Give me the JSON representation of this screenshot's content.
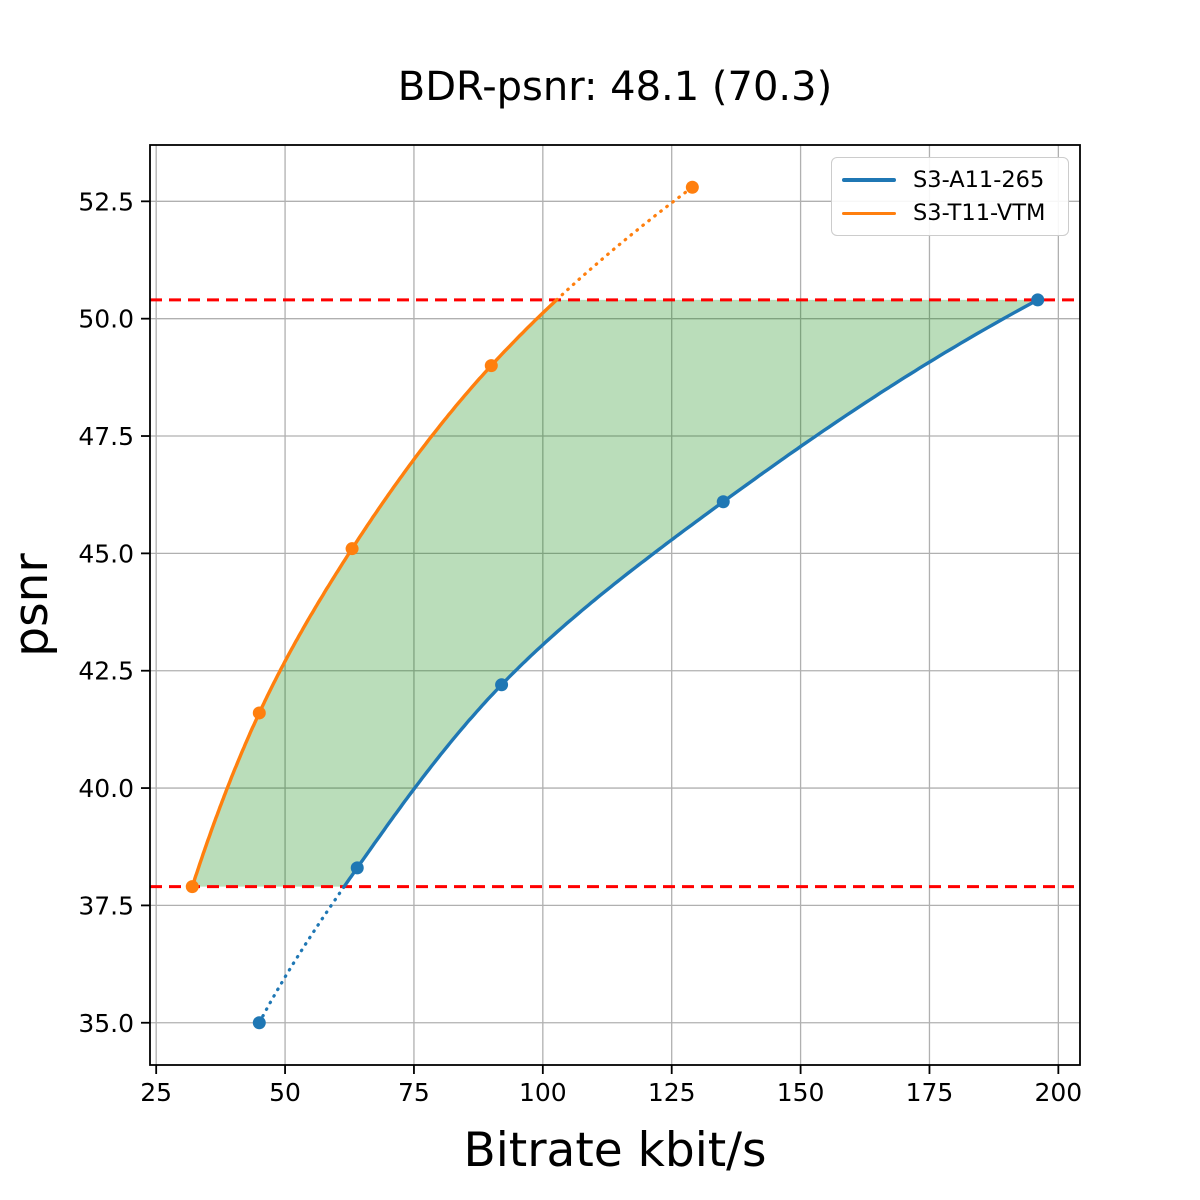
{
  "chart_data": {
    "type": "line",
    "title": "BDR-psnr: 48.1 (70.3)",
    "xlabel": "Bitrate kbit/s",
    "ylabel": "psnr",
    "xlim": [
      23.8,
      204.2
    ],
    "ylim": [
      34.1,
      53.7
    ],
    "x_ticks": [
      25,
      50,
      75,
      100,
      125,
      150,
      175,
      200
    ],
    "y_ticks": [
      35.0,
      37.5,
      40.0,
      42.5,
      45.0,
      47.5,
      50.0,
      52.5
    ],
    "grid": true,
    "grid_color": "#b0b0b0",
    "legend_position": "upper right",
    "series": [
      {
        "name": "S3-A11-265",
        "color": "#1f77b4",
        "x": [
          45,
          64,
          92,
          135,
          196
        ],
        "y": [
          35.0,
          38.3,
          42.2,
          46.1,
          50.4
        ]
      },
      {
        "name": "S3-T11-VTM",
        "color": "#ff7f0e",
        "x": [
          32,
          45,
          63,
          90,
          129
        ],
        "y": [
          37.9,
          41.6,
          45.1,
          49.0,
          52.8
        ]
      }
    ],
    "overlap_lines": {
      "color": "#ff0000",
      "style": "dashed",
      "y_values": [
        37.9,
        50.4
      ]
    },
    "fill": {
      "color": "#008000",
      "opacity": 0.27,
      "between": [
        "S3-T11-VTM",
        "S3-A11-265"
      ],
      "y_range": [
        37.9,
        50.4
      ]
    },
    "line_style_outside_overlap": "dotted"
  }
}
